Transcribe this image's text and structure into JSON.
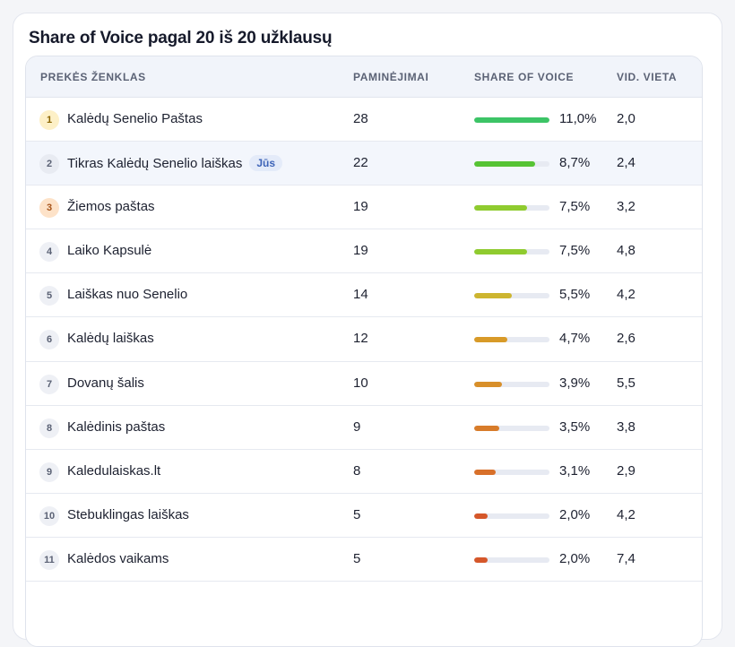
{
  "title": "Share of Voice pagal 20 iš 20 užklausų",
  "columns": {
    "brand": "PREKĖS ŽENKLAS",
    "mentions": "PAMINĖJIMAI",
    "sov": "SHARE OF VOICE",
    "avg": "VID. VIETA"
  },
  "you_badge": "Jūs",
  "rows": [
    {
      "rank": "1",
      "brand": "Kalėdų Senelio Paštas",
      "mentions": "28",
      "sov": "11,0%",
      "fill": 1.0,
      "color": "#3cc466",
      "avg": "2,0",
      "you": false,
      "medal": "gold"
    },
    {
      "rank": "2",
      "brand": "Tikras Kalėdų Senelio laiškas",
      "mentions": "22",
      "sov": "8,7%",
      "fill": 0.81,
      "color": "#56c333",
      "avg": "2,4",
      "you": true,
      "medal": "silver"
    },
    {
      "rank": "3",
      "brand": "Žiemos paštas",
      "mentions": "19",
      "sov": "7,5%",
      "fill": 0.7,
      "color": "#8fcb2f",
      "avg": "3,2",
      "you": false,
      "medal": "bronze"
    },
    {
      "rank": "4",
      "brand": "Laiko Kapsulė",
      "mentions": "19",
      "sov": "7,5%",
      "fill": 0.7,
      "color": "#8fcb2f",
      "avg": "4,8",
      "you": false,
      "medal": ""
    },
    {
      "rank": "5",
      "brand": "Laiškas nuo Senelio",
      "mentions": "14",
      "sov": "5,5%",
      "fill": 0.5,
      "color": "#cdb530",
      "avg": "4,2",
      "you": false,
      "medal": ""
    },
    {
      "rank": "6",
      "brand": "Kalėdų laiškas",
      "mentions": "12",
      "sov": "4,7%",
      "fill": 0.44,
      "color": "#d89a28",
      "avg": "2,6",
      "you": false,
      "medal": ""
    },
    {
      "rank": "7",
      "brand": "Dovanų šalis",
      "mentions": "10",
      "sov": "3,9%",
      "fill": 0.37,
      "color": "#d88f2a",
      "avg": "5,5",
      "you": false,
      "medal": ""
    },
    {
      "rank": "8",
      "brand": "Kalėdinis paštas",
      "mentions": "9",
      "sov": "3,5%",
      "fill": 0.33,
      "color": "#d87c2a",
      "avg": "3,8",
      "you": false,
      "medal": ""
    },
    {
      "rank": "9",
      "brand": "Kaledulaiskas.lt",
      "mentions": "8",
      "sov": "3,1%",
      "fill": 0.29,
      "color": "#d8702a",
      "avg": "2,9",
      "you": false,
      "medal": ""
    },
    {
      "rank": "10",
      "brand": "Stebuklingas laiškas",
      "mentions": "5",
      "sov": "2,0%",
      "fill": 0.18,
      "color": "#d5572a",
      "avg": "4,2",
      "you": false,
      "medal": ""
    },
    {
      "rank": "11",
      "brand": "Kalėdos vaikams",
      "mentions": "5",
      "sov": "2,0%",
      "fill": 0.18,
      "color": "#d5572a",
      "avg": "7,4",
      "you": false,
      "medal": ""
    }
  ]
}
